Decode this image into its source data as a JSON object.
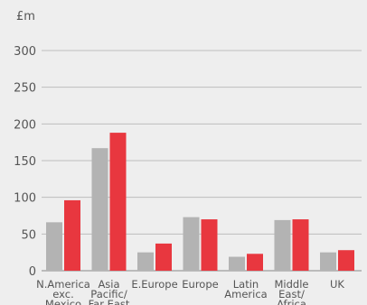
{
  "chart_data": {
    "type": "bar",
    "unit_label": "£m",
    "categories": [
      [
        "N.America",
        "exc.",
        "Mexico"
      ],
      [
        "Asia",
        "Pacific/",
        "Far East"
      ],
      [
        "E.Europe"
      ],
      [
        "Europe"
      ],
      [
        "Latin",
        "America"
      ],
      [
        "Middle",
        "East/",
        "Africa"
      ],
      [
        "UK"
      ]
    ],
    "series": [
      {
        "values": [
          66,
          167,
          25,
          73,
          19,
          69,
          25
        ],
        "color": "#b3b3b3"
      },
      {
        "values": [
          96,
          188,
          37,
          70,
          23,
          70,
          28
        ],
        "color": "#e8373f"
      }
    ],
    "ylim": [
      0,
      300
    ],
    "yticks": [
      0,
      50,
      100,
      150,
      200,
      250,
      300
    ],
    "grid": true
  }
}
